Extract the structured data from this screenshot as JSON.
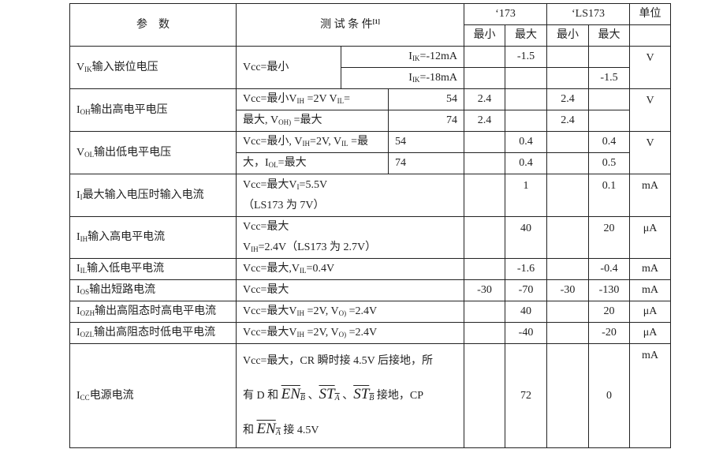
{
  "header": {
    "param": "参　数",
    "cond": "测 试 条 件",
    "cond_note": "[1]",
    "group1": "‘173",
    "group2": "‘LS173",
    "unit": "单位",
    "min": "最小",
    "max": "最大"
  },
  "rows": {
    "vik": {
      "param": [
        "V",
        {
          "sub": "IK"
        },
        "输入嵌位电压"
      ],
      "cond": [
        "Vcc=最小"
      ],
      "sub1": [
        "I",
        {
          "sub": "IK"
        },
        "=-12mA"
      ],
      "sub2": [
        "I",
        {
          "sub": "IK"
        },
        "=-18mA"
      ],
      "v1": [
        "",
        "-1.5",
        "",
        ""
      ],
      "v2": [
        "",
        "",
        "",
        "-1.5"
      ],
      "unit": "V"
    },
    "voh": {
      "param": [
        "I",
        {
          "sub": "OH"
        },
        "输出高电平电压"
      ],
      "cond1": [
        "Vcc=最小V",
        {
          "sub": "IH"
        },
        " =2V  V",
        {
          "sub": "IL"
        },
        "="
      ],
      "cond2": [
        "最大, V",
        {
          "sub": "OH)"
        },
        " =最大"
      ],
      "sub1": "54",
      "sub2": "74",
      "v1": [
        "2.4",
        "",
        "2.4",
        ""
      ],
      "v2": [
        "2.4",
        "",
        "2.4",
        ""
      ],
      "unit": "V"
    },
    "vol": {
      "param": [
        "V",
        {
          "sub": "OL"
        },
        "输出低电平电压"
      ],
      "cond1": [
        "Vcc=最小, V",
        {
          "sub": "IH"
        },
        "=2V, V",
        {
          "sub": "IL"
        },
        " =最"
      ],
      "cond2": [
        "大，I",
        {
          "sub": "OL"
        },
        "=最大"
      ],
      "sub1": "54",
      "sub2": "74",
      "v1": [
        "",
        "0.4",
        "",
        "0.4"
      ],
      "v2": [
        "",
        "0.4",
        "",
        "0.5"
      ],
      "unit": "V"
    },
    "ii": {
      "param": [
        "I",
        {
          "sub": "I"
        },
        "最大输入电压时输入电流"
      ],
      "cond1": [
        "Vcc=最大V",
        {
          "sub": "I"
        },
        "=5.5V"
      ],
      "cond2": [
        "（LS173 为 7V）"
      ],
      "v": [
        "",
        "1",
        "",
        "0.1"
      ],
      "unit": "mA"
    },
    "iih": {
      "param": [
        "I",
        {
          "sub": "IH"
        },
        "输入高电平电流"
      ],
      "cond1": [
        "Vcc=最大"
      ],
      "cond2": [
        "V",
        {
          "sub": "IH"
        },
        "=2.4V（LS173 为 2.7V）"
      ],
      "v": [
        "",
        "40",
        "",
        "20"
      ],
      "unit": "μA"
    },
    "iil": {
      "param": [
        "I",
        {
          "sub": "IL"
        },
        "输入低电平电流"
      ],
      "cond": [
        "Vcc=最大,V",
        {
          "sub": "IL"
        },
        "=0.4V"
      ],
      "v": [
        "",
        "-1.6",
        "",
        "-0.4"
      ],
      "unit": "mA"
    },
    "ios": {
      "param": [
        "I",
        {
          "sub": "OS"
        },
        "输出短路电流"
      ],
      "cond": [
        "Vcc=最大"
      ],
      "v": [
        "-30",
        "-70",
        "-30",
        "-130"
      ],
      "unit": "mA"
    },
    "iozh": {
      "param": [
        "I",
        {
          "sub": "OZH"
        },
        "输出高阻态时高电平电流"
      ],
      "cond": [
        "Vcc=最大V",
        {
          "sub": "IH"
        },
        " =2V, V",
        {
          "sub": "O)"
        },
        " =2.4V"
      ],
      "v": [
        "",
        "40",
        "",
        "20"
      ],
      "unit": "μA"
    },
    "iozl": {
      "param": [
        "I",
        {
          "sub": "OZL"
        },
        "输出高阻态时低电平电流"
      ],
      "cond": [
        "Vcc=最大V",
        {
          "sub": "IH"
        },
        " =2V, V",
        {
          "sub": "O)"
        },
        " =2.4V"
      ],
      "v": [
        "",
        "-40",
        "",
        "-20"
      ],
      "unit": "μA"
    },
    "icc": {
      "param": [
        "I",
        {
          "sub": "CC"
        },
        "电源电流"
      ],
      "cond1": [
        "Vcc=最大，CR 瞬时接 4.5V 后接地，所"
      ],
      "cond2": [
        "有 D 和 ",
        {
          "over": "EN",
          "sub": "B"
        },
        " 、",
        {
          "over": "ST",
          "sub": "A"
        },
        " 、",
        {
          "over": "ST",
          "sub": "B"
        },
        " 接地，CP"
      ],
      "cond3": [
        "和 ",
        {
          "over": "EN",
          "sub": "A"
        },
        " 接 4.5V"
      ],
      "v": [
        "",
        "72",
        "",
        "0"
      ],
      "unit": "mA"
    }
  }
}
